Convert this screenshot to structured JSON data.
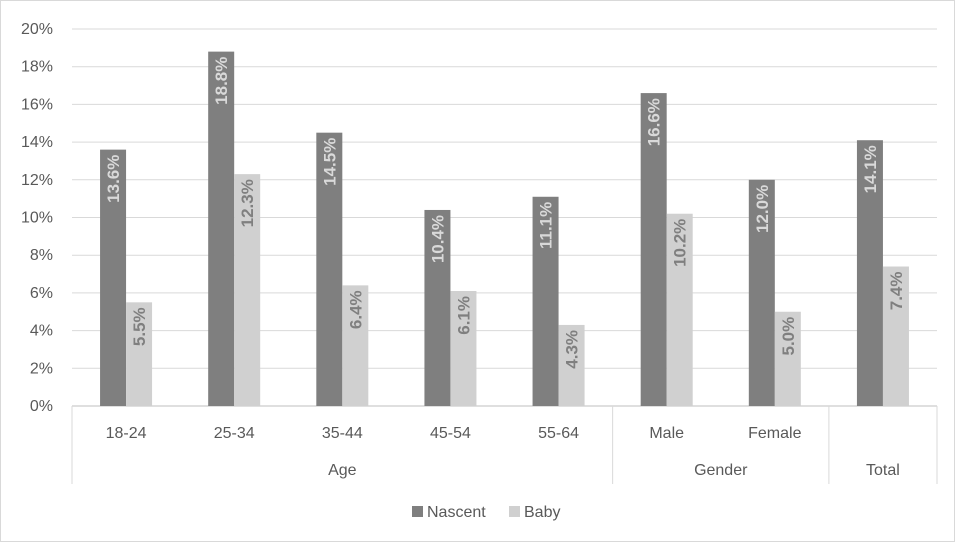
{
  "chart_data": {
    "type": "bar",
    "groups": [
      {
        "name": "Age",
        "categories": [
          "18-24",
          "25-34",
          "35-44",
          "45-54",
          "55-64"
        ]
      },
      {
        "name": "Gender",
        "categories": [
          "Male",
          "Female"
        ]
      },
      {
        "name": "Total",
        "categories": [
          ""
        ]
      }
    ],
    "categories": [
      "18-24",
      "25-34",
      "35-44",
      "45-54",
      "55-64",
      "Male",
      "Female",
      ""
    ],
    "series": [
      {
        "name": "Nascent",
        "color": "#7f7f7f",
        "values": [
          13.6,
          18.8,
          14.5,
          10.4,
          11.1,
          16.6,
          12.0,
          14.1
        ],
        "labels": [
          "13.6%",
          "18.8%",
          "14.5%",
          "10.4%",
          "11.1%",
          "16.6%",
          "12.0%",
          "14.1%"
        ],
        "label_color": "#d9d9d9"
      },
      {
        "name": "Baby",
        "color": "#d0d0d0",
        "values": [
          5.5,
          12.3,
          6.4,
          6.1,
          4.3,
          10.2,
          5.0,
          7.4
        ],
        "labels": [
          "5.5%",
          "12.3%",
          "6.4%",
          "6.1%",
          "4.3%",
          "10.2%",
          "5.0%",
          "7.4%"
        ],
        "label_color": "#7f7f7f"
      }
    ],
    "ylim": [
      0,
      20
    ],
    "yticks": [
      "0%",
      "2%",
      "4%",
      "6%",
      "8%",
      "10%",
      "12%",
      "14%",
      "16%",
      "18%",
      "20%"
    ],
    "grid": true,
    "legend": "bottom"
  }
}
